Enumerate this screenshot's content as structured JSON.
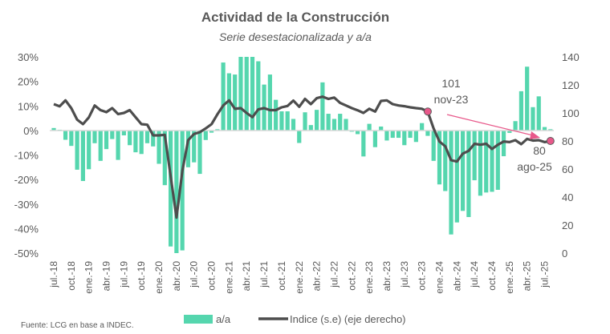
{
  "chart_data": {
    "type": "bar+line",
    "title": "Actividad de la Construcción",
    "subtitle": "Serie desestacionalizada y a/a",
    "source": "Fuente: LCG en base a INDEC.",
    "left_axis": {
      "ylim": [
        -50,
        30
      ],
      "ticks": [
        "30%",
        "20%",
        "10%",
        "0%",
        "-10%",
        "-20%",
        "-30%",
        "-40%",
        "-50%"
      ],
      "tick_values": [
        30,
        20,
        10,
        0,
        -10,
        -20,
        -30,
        -40,
        -50
      ]
    },
    "right_axis": {
      "ylim": [
        0,
        140
      ],
      "ticks": [
        "140",
        "120",
        "100",
        "80",
        "60",
        "40",
        "20",
        "0"
      ],
      "tick_values": [
        140,
        120,
        100,
        80,
        60,
        40,
        20,
        0
      ]
    },
    "x_tick_labels": [
      "jul.-18",
      "oct.-18",
      "ene.-19",
      "abr.-19",
      "jul.-19",
      "oct.-19",
      "ene.-20",
      "abr.-20",
      "jul.-20",
      "oct.-20",
      "ene.-21",
      "abr.-21",
      "jul.-21",
      "oct.-21",
      "ene.-22",
      "abr.-22",
      "jul.-22",
      "oct.-22",
      "ene.-23",
      "abr.-23",
      "jul.-23",
      "oct.-23",
      "ene.-24",
      "abr.-24",
      "jul.-24",
      "oct.-24",
      "ene.-25",
      "abr.-25",
      "jul.-25"
    ],
    "categories": [
      "jul-18",
      "ago-18",
      "sep-18",
      "oct-18",
      "nov-18",
      "dic-18",
      "ene-19",
      "feb-19",
      "mar-19",
      "abr-19",
      "may-19",
      "jun-19",
      "jul-19",
      "ago-19",
      "sep-19",
      "oct-19",
      "nov-19",
      "dic-19",
      "ene-20",
      "feb-20",
      "mar-20",
      "abr-20",
      "may-20",
      "jun-20",
      "jul-20",
      "ago-20",
      "sep-20",
      "oct-20",
      "nov-20",
      "dic-20",
      "ene-21",
      "feb-21",
      "mar-21",
      "abr-21",
      "may-21",
      "jun-21",
      "jul-21",
      "ago-21",
      "sep-21",
      "oct-21",
      "nov-21",
      "dic-21",
      "ene-22",
      "feb-22",
      "mar-22",
      "abr-22",
      "may-22",
      "jun-22",
      "jul-22",
      "ago-22",
      "sep-22",
      "oct-22",
      "nov-22",
      "dic-22",
      "ene-23",
      "feb-23",
      "mar-23",
      "abr-23",
      "may-23",
      "jun-23",
      "jul-23",
      "ago-23",
      "sep-23",
      "oct-23",
      "nov-23",
      "dic-23",
      "ene-24",
      "feb-24",
      "mar-24",
      "abr-24",
      "may-24",
      "jun-24",
      "jul-24",
      "ago-24",
      "sep-24",
      "oct-24",
      "nov-24",
      "dic-24",
      "ene-25",
      "feb-25",
      "mar-25",
      "abr-25",
      "may-25",
      "jun-25",
      "jul-25",
      "ago-25"
    ],
    "series": [
      {
        "name": "a/a",
        "type": "bar",
        "axis": "left",
        "color": "#55d6ae",
        "values": [
          1,
          0.3,
          -3.8,
          -6.3,
          -16,
          -20.6,
          -15.8,
          -5.2,
          -12.4,
          -7.6,
          -3.5,
          -12,
          -2,
          -6,
          -8.9,
          -9.6,
          -5.2,
          -6.5,
          -13.6,
          -22.3,
          -47.3,
          -50,
          -48.9,
          -15,
          -13,
          -17.7,
          -3.9,
          -0.9,
          0.5,
          27.7,
          23.3,
          22.8,
          30,
          30,
          30,
          28.2,
          18.7,
          22.8,
          12.5,
          7.8,
          7.8,
          4.7,
          -5.1,
          7.4,
          2.2,
          8.4,
          19.6,
          6.8,
          4.7,
          6.8,
          4.7,
          -0.5,
          -1.5,
          -10.6,
          2.7,
          -6.8,
          1.6,
          -4.1,
          -3,
          -3,
          -6,
          -3,
          -4.7,
          3,
          -2.2,
          -12.4,
          -22,
          -24.7,
          -42.4,
          -37.5,
          -32.8,
          -35.3,
          -20.3,
          -26.6,
          -25.3,
          -25,
          -24.2,
          -10.5,
          -1,
          3.8,
          16,
          26,
          9.5,
          13.9,
          1.4,
          0.5
        ]
      },
      {
        "name": "Indice (s.e) (eje derecho)",
        "type": "line",
        "axis": "right",
        "color": "#4d4d4d",
        "values": [
          106.3,
          104.7,
          109,
          103.4,
          95.2,
          92,
          96.8,
          105.3,
          102,
          100.6,
          103.4,
          99.2,
          100,
          102,
          97,
          92,
          91.6,
          84,
          84,
          84.4,
          55,
          25.3,
          58.7,
          80.6,
          85,
          86.3,
          89,
          92,
          99,
          105.3,
          109,
          102.9,
          103.4,
          100,
          97,
          102.5,
          103.4,
          102,
          102,
          104,
          105,
          108.8,
          104.4,
          110,
          106.3,
          110.5,
          111.6,
          110,
          111,
          107.2,
          105.3,
          103.4,
          101.9,
          100,
          103,
          101,
          108.6,
          109,
          106.3,
          105.3,
          104.8,
          104,
          103.4,
          103,
          101,
          89,
          79.6,
          76.2,
          66.3,
          65.3,
          71,
          73,
          78,
          77.3,
          78,
          74.3,
          77.3,
          79.6,
          79.2,
          80.6,
          77.7,
          81.5,
          80.3,
          80.6,
          79.2,
          80
        ]
      }
    ],
    "annotations": [
      {
        "index": 64,
        "value_label": "101",
        "date_label": "nov-23"
      },
      {
        "index": 85,
        "value_label": "80",
        "date_label": "ago-25"
      }
    ],
    "marker_color": "#e8588a",
    "legend": {
      "placement": "bottom",
      "items": [
        "a/a",
        "Indice (s.e) (eje derecho)"
      ]
    },
    "grid": false
  }
}
